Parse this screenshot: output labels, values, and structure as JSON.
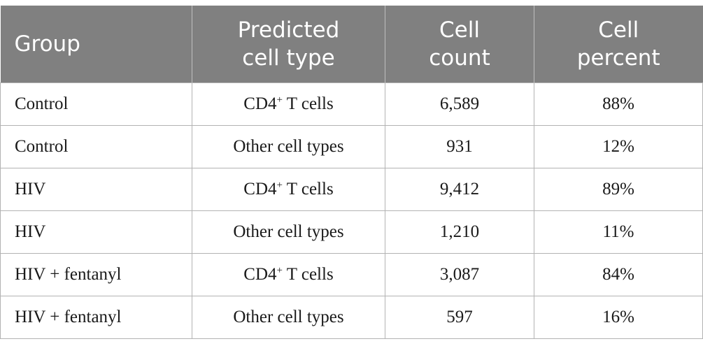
{
  "table": {
    "headers": [
      [
        "Group"
      ],
      [
        "Predicted",
        "cell type"
      ],
      [
        "Cell",
        "count"
      ],
      [
        "Cell",
        "percent"
      ]
    ],
    "rows": [
      {
        "group": "Control",
        "type_main": "CD4",
        "type_sup": "+",
        "type_rest": " T cells",
        "count": "6,589",
        "percent": "88%"
      },
      {
        "group": "Control",
        "type_main": "Other cell types",
        "type_sup": "",
        "type_rest": "",
        "count": "931",
        "percent": "12%"
      },
      {
        "group": "HIV",
        "type_main": "CD4",
        "type_sup": "+",
        "type_rest": " T cells",
        "count": "9,412",
        "percent": "89%"
      },
      {
        "group": "HIV",
        "type_main": "Other cell types",
        "type_sup": "",
        "type_rest": "",
        "count": "1,210",
        "percent": "11%"
      },
      {
        "group": "HIV + fentanyl",
        "type_main": "CD4",
        "type_sup": "+",
        "type_rest": " T cells",
        "count": "3,087",
        "percent": "84%"
      },
      {
        "group": "HIV + fentanyl",
        "type_main": "Other cell types",
        "type_sup": "",
        "type_rest": "",
        "count": "597",
        "percent": "16%"
      }
    ]
  }
}
